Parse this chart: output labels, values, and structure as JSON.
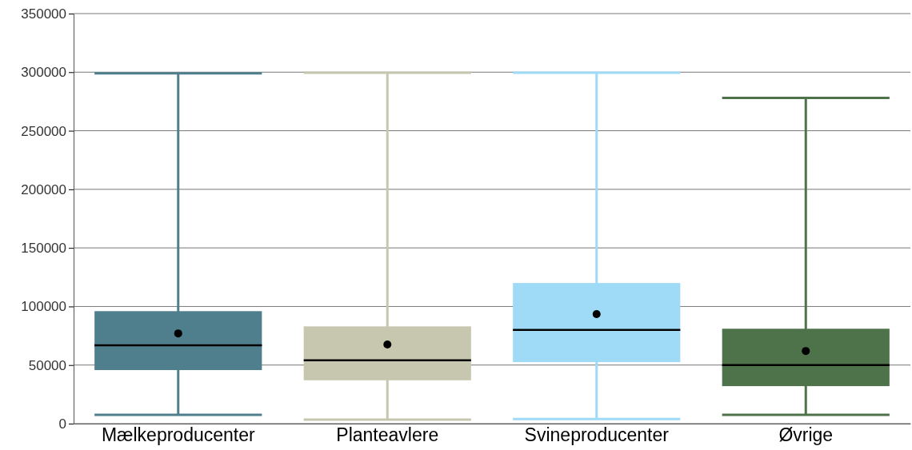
{
  "chart_data": {
    "type": "box",
    "categories": [
      "Mælkeproducenter",
      "Planteavlere",
      "Svineproducenter",
      "Øvrige"
    ],
    "colors": [
      "#4f7f8c",
      "#c7c7b0",
      "#9fdaf6",
      "#4e734a"
    ],
    "boxes": [
      {
        "low": 7500,
        "q1": 45700,
        "median": 66800,
        "q3": 96000,
        "high": 299000,
        "mean": 77000
      },
      {
        "low": 3400,
        "q1": 37000,
        "median": 54000,
        "q3": 83000,
        "high": 299500,
        "mean": 67500
      },
      {
        "low": 4000,
        "q1": 52500,
        "median": 80000,
        "q3": 120000,
        "high": 299500,
        "mean": 93500
      },
      {
        "low": 7500,
        "q1": 32000,
        "median": 50000,
        "q3": 81000,
        "high": 278000,
        "mean": 62000
      }
    ],
    "ylim": [
      0,
      350000
    ],
    "yticks": [
      0,
      50000,
      100000,
      150000,
      200000,
      250000,
      300000,
      350000
    ],
    "grid": true
  }
}
